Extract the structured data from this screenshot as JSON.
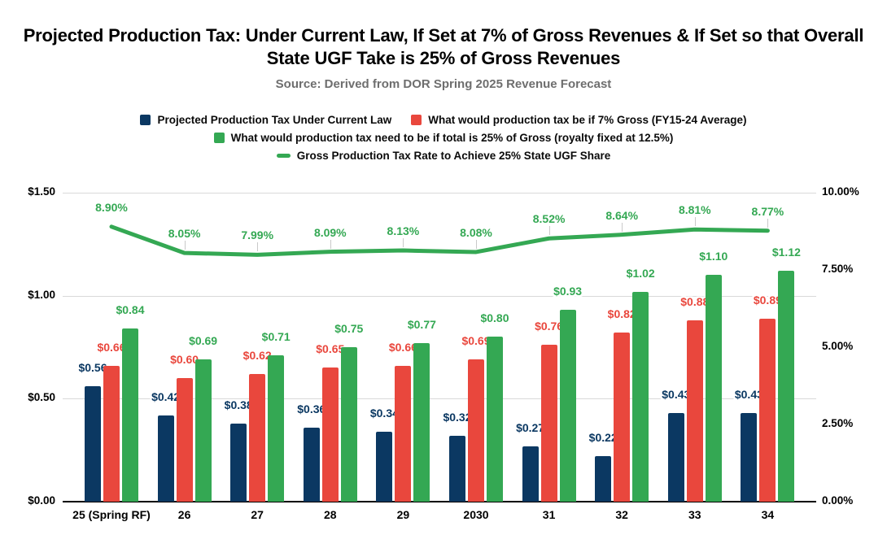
{
  "chart": {
    "title": "Projected Production Tax: Under Current Law, If Set at 7% of Gross Revenues & If Set so that Overall State UGF Take is 25% of Gross Revenues",
    "subtitle": "Source: Derived from DOR Spring 2025 Revenue Forecast"
  },
  "legend": {
    "items": [
      {
        "label": "Projected Production Tax Under Current Law",
        "marker": "square",
        "color": "#0b3862"
      },
      {
        "label": "What would production tax be if 7% Gross (FY15-24 Average)",
        "marker": "square",
        "color": "#e9473d"
      },
      {
        "label": "What would production tax need to be if total is 25% of Gross (royalty fixed at 12.5%)",
        "marker": "square",
        "color": "#34a853"
      },
      {
        "label": "Gross Production Tax Rate to Achieve 25% State UGF Share",
        "marker": "line",
        "color": "#34a853"
      }
    ]
  },
  "chart_data": {
    "type": "combo (grouped bar + line)",
    "title": "Projected Production Tax: Under Current Law, If Set at 7% of Gross Revenues & If Set so that Overall State UGF Take is 25% of Gross Revenues",
    "subtitle": "Source: Derived from DOR Spring 2025 Revenue Forecast",
    "legend_position": "top",
    "grid": "horizontal gridlines at left-axis dollar ticks",
    "categories": [
      "25 (Spring RF)",
      "26",
      "27",
      "28",
      "29",
      "2030",
      "31",
      "32",
      "33",
      "34"
    ],
    "series": [
      {
        "name": "Projected Production Tax Under Current Law",
        "kind": "bar",
        "axis": "left",
        "color": "#0b3862",
        "values": [
          0.56,
          0.42,
          0.38,
          0.36,
          0.34,
          0.32,
          0.27,
          0.22,
          0.43,
          0.43
        ],
        "labels": [
          "$0.56",
          "$0.42",
          "$0.38",
          "$0.36",
          "$0.34",
          "$0.32",
          "$0.27",
          "$0.22",
          "$0.43",
          "$0.43"
        ]
      },
      {
        "name": "What would production tax be if 7% Gross (FY15-24 Average)",
        "kind": "bar",
        "axis": "left",
        "color": "#e9473d",
        "values": [
          0.66,
          0.6,
          0.62,
          0.65,
          0.66,
          0.69,
          0.76,
          0.82,
          0.88,
          0.89
        ],
        "labels": [
          "$0.66",
          "$0.60",
          "$0.62",
          "$0.65",
          "$0.66",
          "$0.69",
          "$0.76",
          "$0.82",
          "$0.88",
          "$0.89"
        ]
      },
      {
        "name": "What would production tax need to be if total is 25% of Gross (royalty fixed at 12.5%)",
        "kind": "bar",
        "axis": "left",
        "color": "#34a853",
        "values": [
          0.84,
          0.69,
          0.71,
          0.75,
          0.77,
          0.8,
          0.93,
          1.02,
          1.1,
          1.12
        ],
        "labels": [
          "$0.84",
          "$0.69",
          "$0.71",
          "$0.75",
          "$0.77",
          "$0.80",
          "$0.93",
          "$1.02",
          "$1.10",
          "$1.12"
        ]
      },
      {
        "name": "Gross Production Tax Rate to Achieve 25% State UGF Share",
        "kind": "line",
        "axis": "right",
        "color": "#34a853",
        "values": [
          8.9,
          8.05,
          7.99,
          8.09,
          8.13,
          8.08,
          8.52,
          8.64,
          8.81,
          8.77
        ],
        "labels": [
          "8.90%",
          "8.05%",
          "7.99%",
          "8.09%",
          "8.13%",
          "8.08%",
          "8.52%",
          "8.64%",
          "8.81%",
          "8.77%"
        ]
      }
    ],
    "left_axis": {
      "min": 0,
      "max": 1.5,
      "ticks": [
        {
          "label": "$1.50",
          "value": 1.5
        },
        {
          "label": "$1.00",
          "value": 1.0
        },
        {
          "label": "$0.50",
          "value": 0.5
        },
        {
          "label": "$0.00",
          "value": 0.0
        }
      ]
    },
    "right_axis": {
      "min": 0,
      "max": 10,
      "ticks": [
        {
          "label": "10.00%",
          "value": 10.0
        },
        {
          "label": "7.50%",
          "value": 7.5
        },
        {
          "label": "5.00%",
          "value": 5.0
        },
        {
          "label": "2.50%",
          "value": 2.5
        },
        {
          "label": "0.00%",
          "value": 0.0
        }
      ]
    }
  }
}
